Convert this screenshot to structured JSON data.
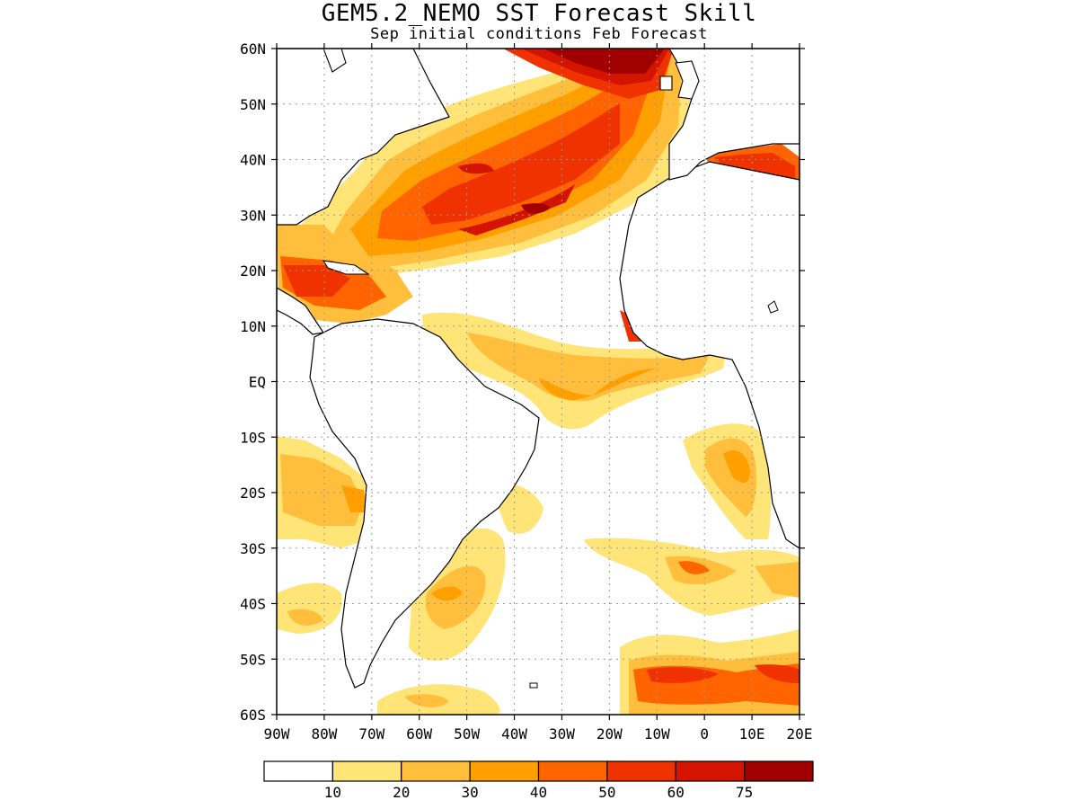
{
  "title": "GEM5.2_NEMO SST Forecast Skill",
  "subtitle": "Sep initial conditions  Feb Forecast",
  "map": {
    "region": "Atlantic Ocean",
    "lon_range": [
      -90,
      20
    ],
    "lat_range": [
      -60,
      60
    ],
    "grid": true,
    "lat_labels": [
      "60N",
      "50N",
      "40N",
      "30N",
      "20N",
      "10N",
      "EQ",
      "10S",
      "20S",
      "30S",
      "40S",
      "50S",
      "60S"
    ],
    "lon_labels": [
      "90W",
      "80W",
      "70W",
      "60W",
      "50W",
      "40W",
      "30W",
      "20W",
      "10W",
      "0",
      "10E",
      "20E"
    ]
  },
  "colorbar": {
    "bins": [
      {
        "color": "#ffffff"
      },
      {
        "color": "#ffe478"
      },
      {
        "color": "#ffbf3c"
      },
      {
        "color": "#ffa000"
      },
      {
        "color": "#ff6400"
      },
      {
        "color": "#f03200"
      },
      {
        "color": "#d21400"
      },
      {
        "color": "#a00000"
      }
    ],
    "labels": [
      "10",
      "20",
      "30",
      "40",
      "50",
      "60",
      "75"
    ]
  },
  "colors": {
    "land": "#ffffff",
    "coast": "#000000",
    "grid": "#9a9a9a"
  }
}
